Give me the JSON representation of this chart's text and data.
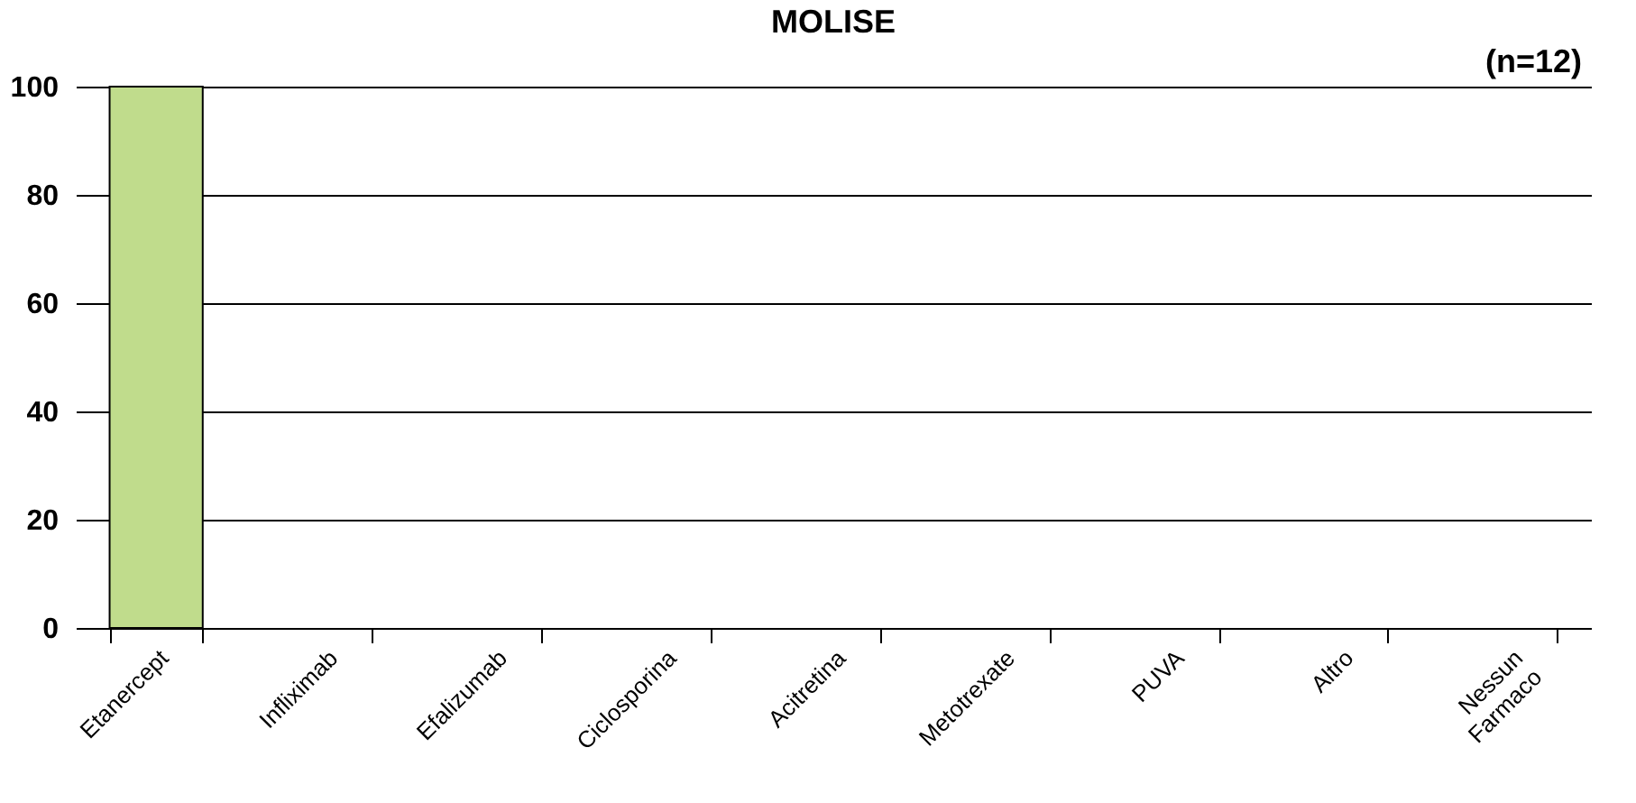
{
  "chart_data": {
    "type": "bar",
    "title": "MOLISE",
    "annotations": [
      "(n=12)"
    ],
    "categories": [
      "Etanercept",
      "Infliximab",
      "Efalizumab",
      "Ciclosporina",
      "Acitretina",
      "Metotrexate",
      "PUVA",
      "Altro",
      "Nessun Farmaco"
    ],
    "values": [
      100,
      0,
      0,
      0,
      0,
      0,
      0,
      0,
      0
    ],
    "color": "#c0dc8c",
    "ylim": [
      0,
      100
    ],
    "yticks": [
      0,
      20,
      40,
      60,
      80,
      100
    ],
    "grid": "y"
  }
}
